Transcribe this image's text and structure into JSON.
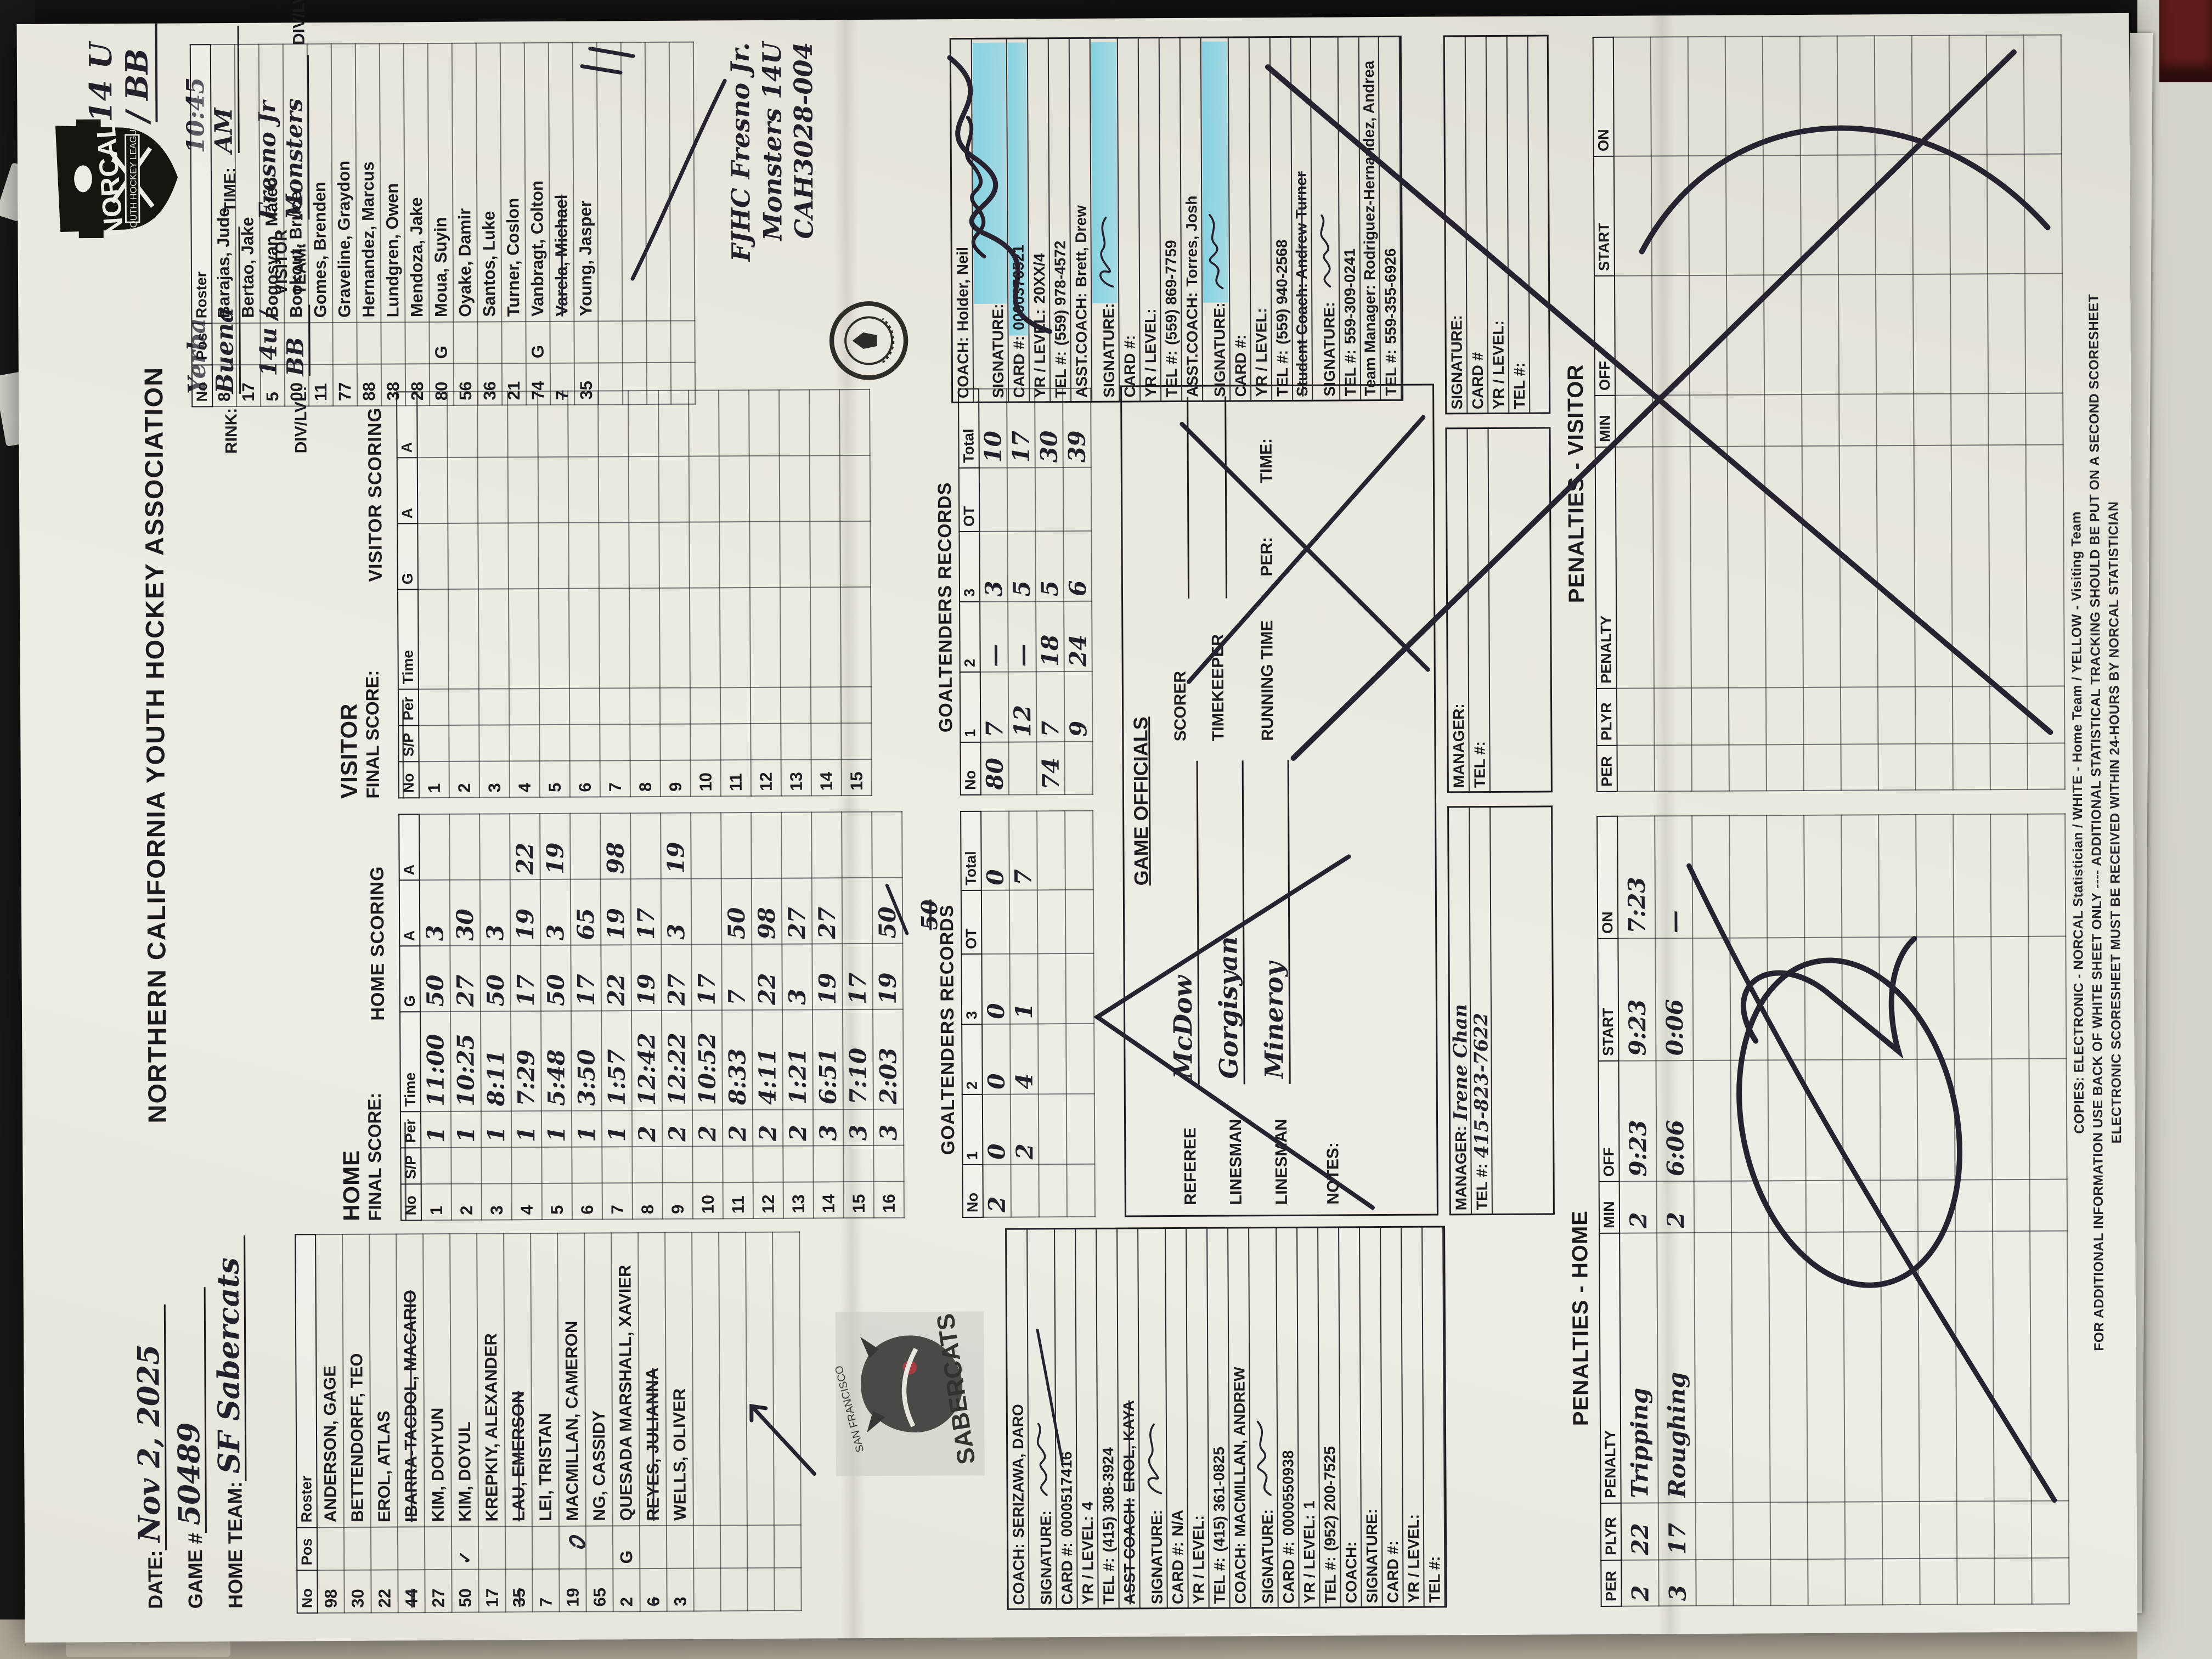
{
  "meta": {
    "date_label": "DATE:",
    "date": "Nov 2, 2025",
    "game_label": "GAME #",
    "game": "50489",
    "home_team_label": "HOME TEAM:",
    "home_team": "SF Sabercats",
    "assoc_title": "NORTHERN CALIFORNIA YOUTH HOCKEY ASSOCIATION",
    "rink_label": "RINK:",
    "rink": "Yerba Buena",
    "div_label": "DIV/LVL:",
    "home_div": "14u / BB",
    "time_label": "TIME:",
    "time": "10:45 AM",
    "visitor_team_label": "VISITOR TEAM:",
    "visitor_team": "Fresno Jr Monsters",
    "visitor_div": "14 U / BB"
  },
  "logo": {
    "name": "NORCAL",
    "sub": "YOUTH HOCKEY LEAGUE"
  },
  "stamps": {
    "sabercats_top": "SAN FRANCISCO",
    "sabercats": "SABERCATS"
  },
  "home_roster": {
    "headers": [
      "No",
      "Pos",
      "Roster"
    ],
    "rows": [
      [
        "98",
        "",
        "ANDERSON, GAGE"
      ],
      [
        "30",
        "",
        "BETTENDORFF, TEO"
      ],
      [
        "22",
        "",
        "EROL, ATLAS"
      ],
      [
        "44",
        "",
        "IBARRA-TACDOL, MACARIO"
      ],
      [
        "27",
        "",
        "KIM, DOHYUN"
      ],
      [
        "50",
        "✓",
        "KIM, DOYUL"
      ],
      [
        "17",
        "",
        "KREPKIY, ALEXANDER"
      ],
      [
        "35",
        "",
        "LAU, EMERSON"
      ],
      [
        "7",
        "",
        "LEI, TRISTAN"
      ],
      [
        "19",
        "",
        "MACMILLAN, CAMERON"
      ],
      [
        "65",
        "",
        "NG, CASSIDY"
      ],
      [
        "2",
        "G",
        "QUESADA MARSHALL, XAVIER"
      ],
      [
        "6",
        "",
        "REYES, JULIANNA"
      ],
      [
        "3",
        "",
        "WELLS, OLIVER"
      ]
    ],
    "struck": [
      3,
      7,
      12
    ],
    "empty_rows": 4
  },
  "visitor_roster": {
    "headers": [
      "No",
      "Pos",
      "Roster"
    ],
    "rows": [
      [
        "8",
        "",
        "Barajas, Jude"
      ],
      [
        "17",
        "",
        "Bertao, Jake"
      ],
      [
        "5",
        "",
        "Bogosyan, Mateo"
      ],
      [
        "00",
        "",
        "Bookout, Bruce"
      ],
      [
        "11",
        "",
        "Gomes, Brenden"
      ],
      [
        "77",
        "",
        "Graveline, Graydon"
      ],
      [
        "88",
        "",
        "Hernandez, Marcus"
      ],
      [
        "38",
        "",
        "Lundgren, Owen"
      ],
      [
        "28",
        "",
        "Mendoza, Jake"
      ],
      [
        "80",
        "G",
        "Moua, Suyin"
      ],
      [
        "56",
        "",
        "Oyake, Damir"
      ],
      [
        "36",
        "",
        "Santos, Luke"
      ],
      [
        "21",
        "",
        "Turner, Coslon"
      ],
      [
        "74",
        "G",
        "Vanbragt, Colton"
      ],
      [
        "7",
        "",
        "Varela, Michael"
      ],
      [
        "35",
        "",
        "Young, Jasper"
      ]
    ],
    "struck": [
      14
    ],
    "empty_rows": 4
  },
  "home_scoring": {
    "heading": "HOME",
    "final_label": "FINAL SCORE:",
    "final_score": "",
    "title": "HOME SCORING",
    "headers": [
      "No",
      "S/P",
      "Per",
      "Time",
      "G",
      "A",
      "A"
    ],
    "hw_cols": [
      2,
      3,
      4,
      5,
      6
    ],
    "rows": [
      [
        "1",
        "",
        "1",
        "11:00",
        "50",
        "3",
        ""
      ],
      [
        "2",
        "",
        "1",
        "10:25",
        "27",
        "30",
        ""
      ],
      [
        "3",
        "",
        "1",
        "8:11",
        "50",
        "3",
        ""
      ],
      [
        "4",
        "",
        "1",
        "7:29",
        "17",
        "19",
        "22"
      ],
      [
        "5",
        "",
        "1",
        "5:48",
        "50",
        "3",
        "19"
      ],
      [
        "6",
        "",
        "1",
        "3:50",
        "17",
        "65",
        ""
      ],
      [
        "7",
        "",
        "1",
        "1:57",
        "22",
        "19",
        "98"
      ],
      [
        "8",
        "",
        "2",
        "12:42",
        "19",
        "17",
        ""
      ],
      [
        "9",
        "",
        "2",
        "12:22",
        "27",
        "3",
        "19"
      ],
      [
        "10",
        "",
        "2",
        "10:52",
        "17",
        "",
        ""
      ],
      [
        "11",
        "",
        "2",
        "8:33",
        "7",
        "50",
        ""
      ],
      [
        "12",
        "",
        "2",
        "4:11",
        "22",
        "98",
        ""
      ],
      [
        "13",
        "",
        "2",
        "1:21",
        "3",
        "27",
        ""
      ],
      [
        "14",
        "",
        "3",
        "6:51",
        "19",
        "27",
        ""
      ],
      [
        "15",
        "",
        "3",
        "7:10",
        "17",
        "",
        ""
      ],
      [
        "16",
        "",
        "3",
        "2:03",
        "19",
        "50",
        ""
      ]
    ]
  },
  "visitor_scoring": {
    "heading": "VISITOR",
    "final_label": "FINAL SCORE:",
    "final_score": "",
    "title": "VISITOR SCORING",
    "headers": [
      "No",
      "S/P",
      "Per",
      "Time",
      "G",
      "A",
      "A"
    ],
    "hw_cols": [
      2,
      3,
      4,
      5,
      6
    ],
    "rows": [],
    "numbered_empty": 15
  },
  "home_goalies": {
    "title": "GOALTENDERS RECORDS",
    "headers": [
      "No",
      "1",
      "2",
      "3",
      "OT",
      "Total"
    ],
    "hw_cols": [
      0,
      1,
      2,
      3,
      4,
      5
    ],
    "rows": [
      [
        "2",
        "0",
        "0",
        "0",
        "",
        "0"
      ],
      [
        "",
        "2",
        "4",
        "1",
        "",
        "7"
      ]
    ],
    "empty_rows": 2,
    "scribble": "50"
  },
  "visitor_goalies": {
    "title": "GOALTENDERS RECORDS",
    "headers": [
      "No",
      "1",
      "2",
      "3",
      "OT",
      "Total"
    ],
    "hw_cols": [
      0,
      1,
      2,
      3,
      4,
      5
    ],
    "rows": [
      [
        "80",
        "7",
        "—",
        "3",
        "",
        "10"
      ],
      [
        "",
        "12",
        "—",
        "5",
        "",
        "17"
      ],
      [
        "74",
        "7",
        "18",
        "5",
        "",
        "30"
      ],
      [
        "",
        "9",
        "24",
        "6",
        "",
        "39"
      ]
    ]
  },
  "officials": {
    "title": "GAME OFFICIALS",
    "referee_label": "REFEREE",
    "linesman_label": "LINESMAN",
    "scorer_label": "SCORER",
    "timekeeper_label": "TIMEKEEPER",
    "running_label": "RUNNING TIME",
    "per_label": "PER:",
    "time_label": "TIME:",
    "notes_label": "NOTES:",
    "referee": "McDow",
    "linesman1": "Gorgisyan",
    "linesman2": "Mineroy"
  },
  "fjhc_note": {
    "lines": [
      "FJHC  Fresno Jr.",
      "Monsters 14U",
      "CAH3028-004"
    ]
  },
  "home_coach_box": {
    "rows": [
      {
        "l": "COACH:",
        "v": "SERIZAWA, DARO",
        "printed": true
      },
      {
        "l": "SIGNATURE:",
        "sig": 1
      },
      {
        "l": "CARD #:",
        "v": "0000517416",
        "printed": true
      },
      {
        "l": "YR / LEVEL:",
        "v": "4",
        "printed": true
      },
      {
        "l": "TEL #:",
        "v": "(415) 308-3924",
        "printed": true
      },
      {
        "l": "ASST COACH:",
        "v": "EROL, KAYA",
        "printed": true,
        "struck": true
      },
      {
        "l": "SIGNATURE:",
        "sig": 2
      },
      {
        "l": "CARD #:",
        "v": "N/A",
        "printed": true
      },
      {
        "l": "YR / LEVEL:"
      },
      {
        "l": "TEL #:",
        "v": "(415) 361-0825",
        "printed": true
      },
      {
        "l": "COACH:",
        "v": "MACMILLAN, ANDREW",
        "printed": true
      },
      {
        "l": "SIGNATURE:",
        "sig": 3
      },
      {
        "l": "CARD #:",
        "v": "0000550938",
        "printed": true
      },
      {
        "l": "YR / LEVEL:",
        "v": "1",
        "printed": true
      },
      {
        "l": "TEL #:",
        "v": "(952) 200-7525",
        "printed": true
      },
      {
        "l": "COACH:"
      },
      {
        "l": "SIGNATURE:"
      },
      {
        "l": "CARD #:"
      },
      {
        "l": "YR / LEVEL:"
      },
      {
        "l": "TEL #:"
      }
    ]
  },
  "visitor_coach_box": {
    "rows": [
      {
        "l": "COACH:",
        "v": "Holder, Neil",
        "printed": true
      },
      {
        "l": "SIGNATURE:",
        "hl": true,
        "sig": 4,
        "big": true
      },
      {
        "l": "CARD #:",
        "v": "0000376521",
        "printed": true,
        "hl": true
      },
      {
        "l": "YR / LEVEL:",
        "v": "20XX/4",
        "printed": true
      },
      {
        "l": "TEL #:",
        "v": "(559) 978-4572",
        "printed": true
      },
      {
        "l": "ASST.COACH:",
        "v": "Brett, Drew",
        "printed": true
      },
      {
        "l": "SIGNATURE:",
        "hl": true,
        "sig": 5
      },
      {
        "l": "CARD #:"
      },
      {
        "l": "YR / LEVEL:"
      },
      {
        "l": "TEL #:",
        "v": "(559) 869-7759",
        "printed": true
      },
      {
        "l": "ASST.COACH:",
        "v": "Torres, Josh",
        "printed": true
      },
      {
        "l": "SIGNATURE:",
        "hl": true,
        "sig": 6
      },
      {
        "l": "CARD #:"
      },
      {
        "l": "YR / LEVEL:"
      },
      {
        "l": "TEL #:",
        "v": "(559) 940-2568",
        "printed": true
      },
      {
        "l": "Student Coach: Andrew Turner",
        "labelOnly": true,
        "struck": true
      },
      {
        "l": "SIGNATURE:",
        "sig": 7
      },
      {
        "l": "TEL #:",
        "v": "559-309-0241",
        "printed": true
      },
      {
        "l": "Team Manager: Rodriguez-Hernandez, Andrea",
        "labelOnly": true
      },
      {
        "l": "TEL #:",
        "v": "559-355-6926",
        "printed": true
      }
    ]
  },
  "home_manager_box": {
    "rows": [
      {
        "l": "MANAGER:",
        "v": "Irene Chan"
      },
      {
        "l": "TEL #:",
        "v": "415-823-7622"
      }
    ]
  },
  "visitor_manager_box": {
    "rows": [
      {
        "l": "MANAGER:"
      },
      {
        "l": "TEL #:"
      }
    ]
  },
  "visitor_sign_box": {
    "rows": [
      {
        "l": "SIGNATURE:"
      },
      {
        "l": "CARD #"
      },
      {
        "l": "YR / LEVEL:"
      },
      {
        "l": "TEL #:"
      }
    ]
  },
  "penalties_home": {
    "title": "PENALTIES - HOME",
    "headers": [
      "PER",
      "PLYR",
      "PENALTY",
      "MIN",
      "OFF",
      "START",
      "ON"
    ],
    "hw_cols": [
      0,
      1,
      2,
      3,
      4,
      5,
      6
    ],
    "rows": [
      [
        "2",
        "22",
        "Tripping",
        "2",
        "9:23",
        "9:23",
        "7:23"
      ],
      [
        "3",
        "17",
        "Roughing",
        "2",
        "6:06",
        "0:06",
        "—"
      ]
    ],
    "empty_rows": 10
  },
  "penalties_visitor": {
    "title": "PENALTIES - VISITOR",
    "headers": [
      "PER",
      "PLYR",
      "PENALTY",
      "MIN",
      "OFF",
      "START",
      "ON"
    ],
    "hw_cols": [
      0,
      1,
      2,
      3,
      4,
      5,
      6
    ],
    "rows": [],
    "empty_rows": 12
  },
  "footer_lines": [
    "COPIES:    ELECTRONIC  -  NORCAL Statistician    /    WHITE  -  Home Team    /    YELLOW  -  Visiting Team",
    "FOR ADDITIONAL INFORMATION USE BACK OF WHITE SHEET ONLY  ----  ADDITIONAL STATISTICAL TRACKING SHOULD BE PUT ON A SECOND SCORESHEET",
    "ELECTRONIC SCORESHEET MUST BE RECEIVED WITHIN 24-HOURS BY NORCAL STATISTICIAN"
  ],
  "colors": {
    "paper": "#ece9e0",
    "ink": "#1b1a1e",
    "pen": "#241f2b",
    "highlight": "#7fd0e4"
  }
}
